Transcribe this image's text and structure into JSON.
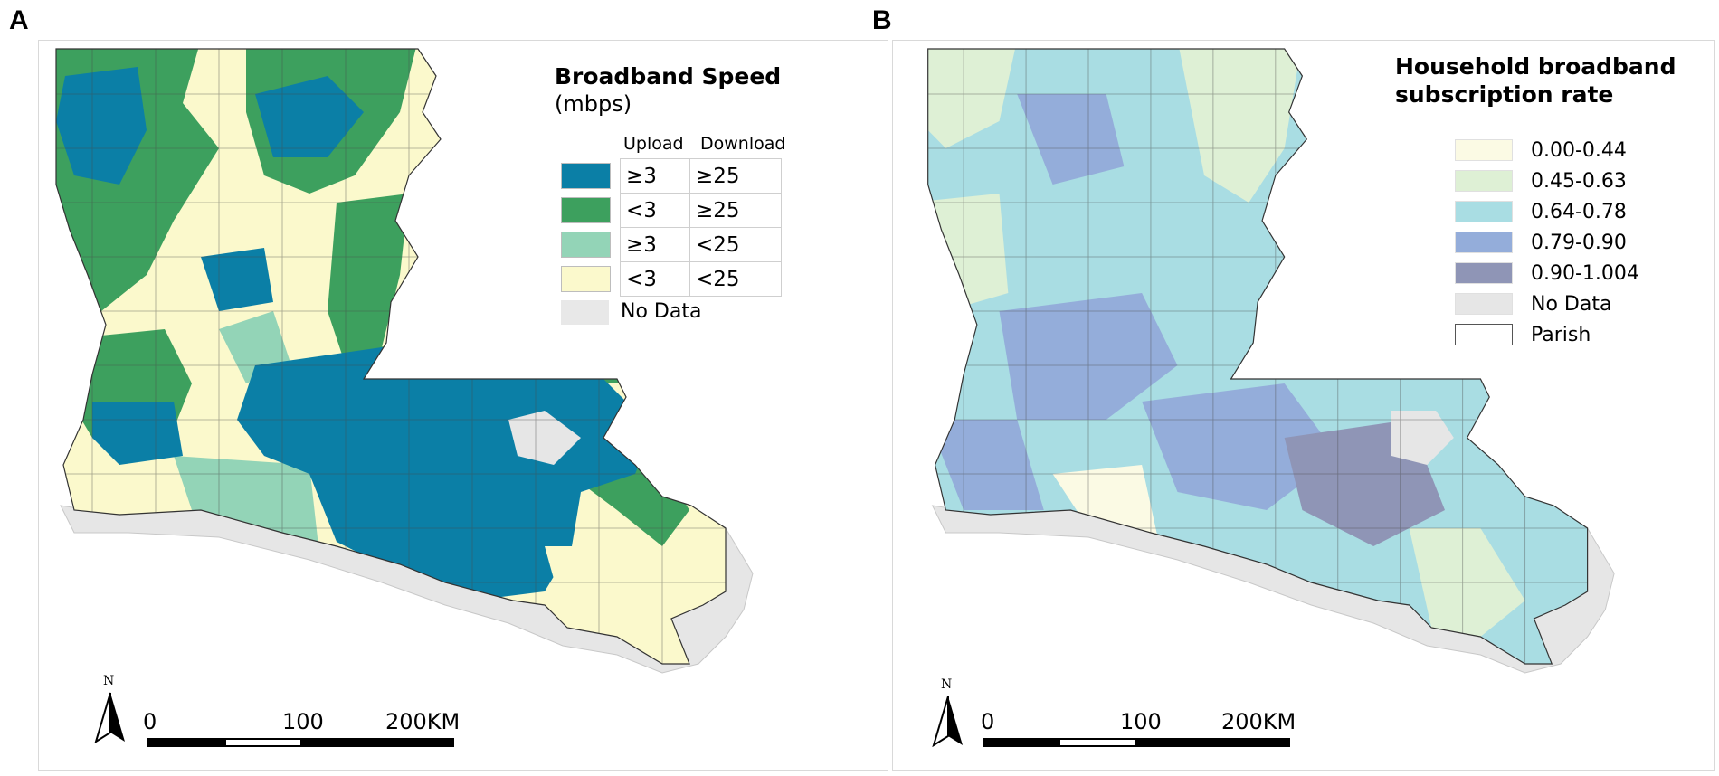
{
  "panels": [
    {
      "letter": "A",
      "legend": {
        "title": "Broadband Speed",
        "subtitle": "(mbps)",
        "col_upload": "Upload",
        "col_download": "Download",
        "rows": [
          {
            "color": "#0b7fa6",
            "upload": "≥3",
            "download": "≥25"
          },
          {
            "color": "#3da05e",
            "upload": "<3",
            "download": "≥25"
          },
          {
            "color": "#93d4b7",
            "upload": "≥3",
            "download": "<25"
          },
          {
            "color": "#fbf9cc",
            "upload": "<3",
            "download": "<25"
          }
        ],
        "no_data": {
          "color": "#e8e8e8",
          "label": "No Data"
        }
      },
      "north": "N",
      "scale": {
        "t0": "0",
        "t1": "100",
        "t2": "200KM"
      }
    },
    {
      "letter": "B",
      "legend": {
        "title_line1": "Household broadband",
        "title_line2": "subscription rate",
        "classes": [
          {
            "color": "#fbfae4",
            "label": "0.00-0.44"
          },
          {
            "color": "#def0d5",
            "label": "0.45-0.63"
          },
          {
            "color": "#a9dde3",
            "label": "0.64-0.78"
          },
          {
            "color": "#94adda",
            "label": "0.79-0.90"
          },
          {
            "color": "#8f95b6",
            "label": "0.90-1.004"
          },
          {
            "color": "#e6e6e6",
            "label": "No Data"
          },
          {
            "color": "#ffffff",
            "label": "Parish"
          }
        ]
      },
      "north": "N",
      "scale": {
        "t0": "0",
        "t1": "100",
        "t2": "200KM"
      }
    }
  ]
}
